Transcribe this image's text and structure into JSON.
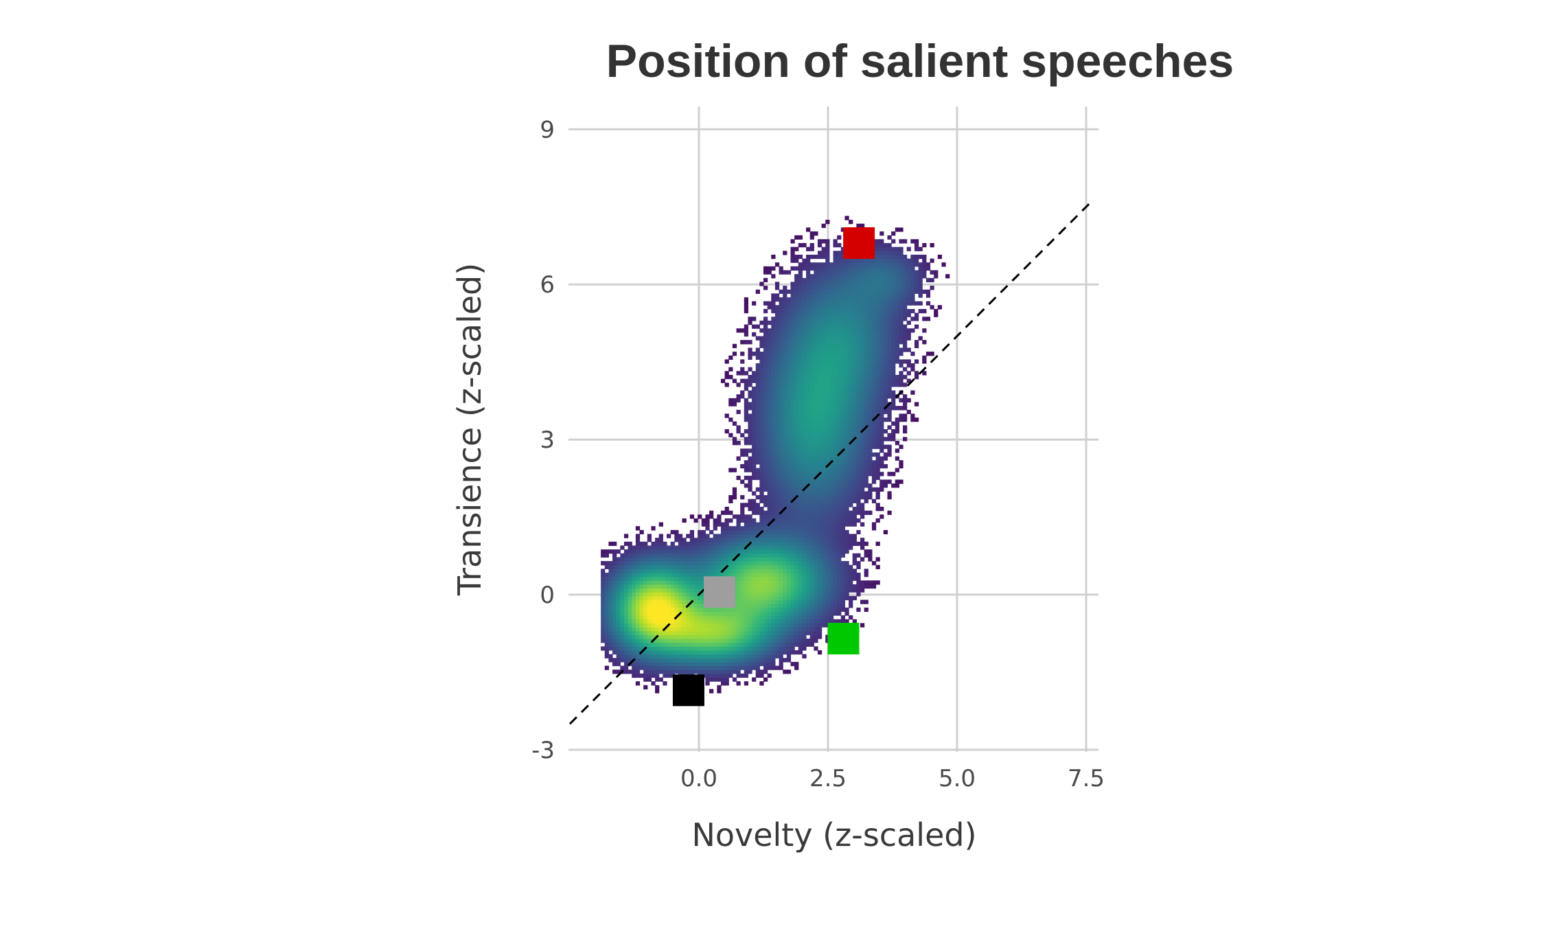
{
  "chart_data": {
    "type": "heatmap",
    "title": "Position of salient speeches",
    "xlabel": "Novelty (z-scaled)",
    "ylabel": "Transience (z-scaled)",
    "xlim": [
      -2.5,
      7.75
    ],
    "ylim": [
      -3.2,
      9.4
    ],
    "x_ticks": [
      0.0,
      2.5,
      5.0,
      7.5
    ],
    "x_tick_labels": [
      "0.0",
      "2.5",
      "5.0",
      "7.5"
    ],
    "y_ticks": [
      -3,
      0,
      3,
      6,
      9
    ],
    "y_tick_labels": [
      "-3",
      "0",
      "3",
      "6",
      "9"
    ],
    "grid": true,
    "legend": "none",
    "colormap": "viridis",
    "reference_line": {
      "style": "dashed",
      "color": "#000000",
      "from": [
        -2.5,
        -2.5
      ],
      "to": [
        7.6,
        7.6
      ]
    },
    "density_clusters": [
      {
        "center": [
          -0.9,
          -0.3
        ],
        "spread": [
          0.55,
          0.55
        ],
        "weight": 1.0
      },
      {
        "center": [
          0.3,
          -0.8
        ],
        "spread": [
          0.7,
          0.4
        ],
        "weight": 0.7
      },
      {
        "center": [
          1.2,
          0.2
        ],
        "spread": [
          0.8,
          0.55
        ],
        "weight": 0.8
      },
      {
        "center": [
          2.2,
          3.3
        ],
        "spread": [
          0.7,
          1.2
        ],
        "weight": 0.45
      },
      {
        "center": [
          2.8,
          5.0
        ],
        "spread": [
          0.7,
          0.9
        ],
        "weight": 0.3
      },
      {
        "center": [
          3.6,
          6.1
        ],
        "spread": [
          0.5,
          0.4
        ],
        "weight": 0.2
      }
    ],
    "series": [
      {
        "color": "#d40000",
        "x": 3.1,
        "y": 6.8
      },
      {
        "color": "#9e9e9e",
        "x": 0.4,
        "y": 0.05
      },
      {
        "color": "#00c800",
        "x": 2.8,
        "y": -0.85
      },
      {
        "color": "#000000",
        "x": -0.2,
        "y": -1.85
      }
    ]
  }
}
